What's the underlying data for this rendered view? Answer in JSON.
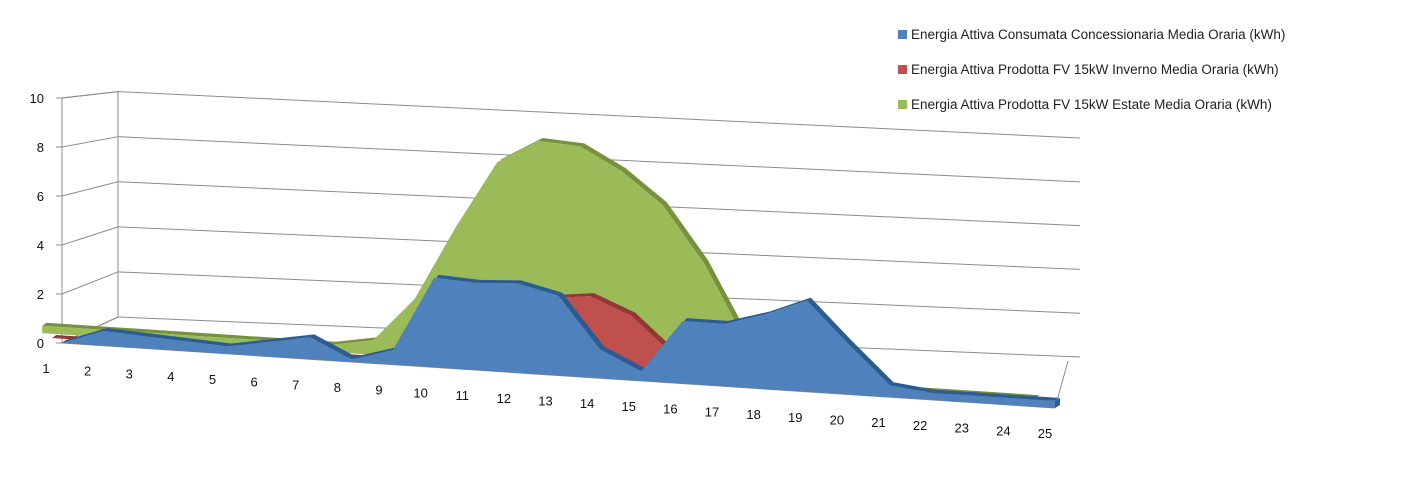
{
  "chart_data": {
    "type": "area",
    "title": "",
    "xlabel": "",
    "ylabel": "",
    "ylim": [
      0,
      10
    ],
    "yticks": [
      0,
      2,
      4,
      6,
      8,
      10
    ],
    "categories": [
      "1",
      "2",
      "3",
      "4",
      "5",
      "6",
      "7",
      "8",
      "9",
      "10",
      "11",
      "12",
      "13",
      "14",
      "15",
      "16",
      "17",
      "18",
      "19",
      "20",
      "21",
      "22",
      "23",
      "24",
      "25"
    ],
    "legend_position": "top-right",
    "grid": true,
    "view": "3d",
    "series": [
      {
        "name": "Energia Attiva Prodotta FV 15kW Estate Media Oraria (kWh)",
        "color": "#9BBB59",
        "values": [
          0.3,
          0.3,
          0.3,
          0.3,
          0.3,
          0.3,
          0.3,
          0.3,
          0.6,
          2.4,
          5.5,
          8.3,
          9.3,
          9.2,
          8.3,
          7.0,
          4.7,
          1.6,
          0,
          0,
          0,
          0,
          0,
          0,
          0
        ]
      },
      {
        "name": "Energia Attiva Prodotta FV 15kW Inverno Media Oraria (kWh)",
        "color": "#C0504D",
        "values": [
          0,
          0,
          0,
          0,
          0,
          0,
          0,
          0,
          0,
          0,
          0.3,
          2.3,
          3.0,
          3.2,
          2.5,
          1.0,
          0,
          0,
          0,
          0,
          0,
          0,
          0,
          0,
          0
        ]
      },
      {
        "name": "Energia Attiva Consumata Concessionaria Media Oraria (kWh)",
        "color": "#4F81BD",
        "values": [
          0,
          0.6,
          0.5,
          0.4,
          0.3,
          0.6,
          0.9,
          0.1,
          0.6,
          3.7,
          3.6,
          3.7,
          3.3,
          1.2,
          0.4,
          2.6,
          2.6,
          3.1,
          3.8,
          2.1,
          0.5,
          0.3,
          0.3,
          0.3,
          0.3
        ]
      }
    ]
  },
  "legend": [
    {
      "label": "Energia Attiva Consumata Concessionaria Media Oraria (kWh)",
      "color": "#4F81BD"
    },
    {
      "label": "Energia Attiva Prodotta FV 15kW Inverno Media Oraria (kWh)",
      "color": "#C0504D"
    },
    {
      "label": "Energia Attiva Prodotta FV 15kW Estate Media Oraria (kWh)",
      "color": "#9BBB59"
    }
  ]
}
